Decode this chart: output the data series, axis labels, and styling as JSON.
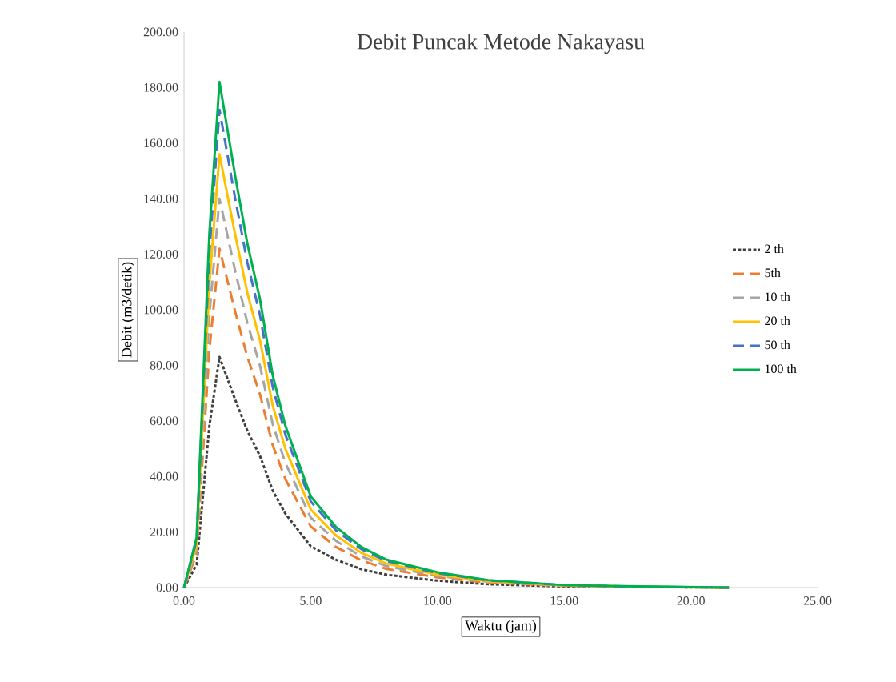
{
  "chart_data": {
    "type": "line",
    "title": "Debit Puncak Metode Nakayasu",
    "xlabel": "Waktu (jam)",
    "ylabel": "Debit (m3/detik)",
    "x": [
      0,
      0.5,
      1.0,
      1.4,
      2,
      2.5,
      3,
      3.5,
      4,
      5,
      6,
      7,
      8,
      10,
      12,
      15,
      18,
      21.5
    ],
    "xlim": [
      0,
      25
    ],
    "ylim": [
      0,
      200
    ],
    "xticks": [
      {
        "value": 0,
        "label": "0.00"
      },
      {
        "value": 5,
        "label": "5.00"
      },
      {
        "value": 10,
        "label": "10.00"
      },
      {
        "value": 15,
        "label": "15.00"
      },
      {
        "value": 20,
        "label": "20.00"
      },
      {
        "value": 25,
        "label": "25.00"
      }
    ],
    "yticks": [
      {
        "value": 0,
        "label": "0.00"
      },
      {
        "value": 20,
        "label": "20.00"
      },
      {
        "value": 40,
        "label": "40.00"
      },
      {
        "value": 60,
        "label": "60.00"
      },
      {
        "value": 80,
        "label": "80.00"
      },
      {
        "value": 100,
        "label": "100.00"
      },
      {
        "value": 120,
        "label": "120.00"
      },
      {
        "value": 140,
        "label": "140.00"
      },
      {
        "value": 160,
        "label": "160.00"
      },
      {
        "value": 180,
        "label": "180.00"
      },
      {
        "value": 200,
        "label": "200.00"
      }
    ],
    "grid": false,
    "legend": "right",
    "marker": "none",
    "series": [
      {
        "name": "2 th",
        "color": "#404040",
        "line_style": "dotted",
        "values": [
          0,
          8.3,
          58.1,
          83,
          68.1,
          56.4,
          47.3,
          34.9,
          26.6,
          14.9,
          10.0,
          6.6,
          4.6,
          2.5,
          1.2,
          0.4,
          0.2,
          0
        ]
      },
      {
        "name": "5th",
        "color": "#ed7d31",
        "line_style": "dashed",
        "values": [
          0,
          12.2,
          85.4,
          122,
          100,
          83,
          69.5,
          51.2,
          39,
          22,
          14.6,
          9.8,
          6.7,
          3.7,
          1.8,
          0.6,
          0.2,
          0
        ]
      },
      {
        "name": "10 th",
        "color": "#a5a5a5",
        "line_style": "dashed",
        "values": [
          0,
          14,
          98,
          140,
          114.8,
          95.2,
          79.8,
          58.8,
          44.8,
          25.2,
          16.8,
          11.2,
          7.7,
          4.2,
          2.1,
          0.7,
          0.3,
          0
        ]
      },
      {
        "name": "20 th",
        "color": "#ffc000",
        "line_style": "solid",
        "values": [
          0,
          15.6,
          109.2,
          156,
          127.9,
          106.1,
          88.9,
          65.5,
          49.9,
          28.1,
          18.7,
          12.5,
          8.6,
          4.7,
          2.3,
          0.8,
          0.3,
          0
        ]
      },
      {
        "name": "50 th",
        "color": "#4472c4",
        "line_style": "dashed",
        "values": [
          0,
          17.2,
          120.4,
          172,
          141,
          117,
          98,
          72.2,
          55,
          31,
          20.6,
          13.8,
          9.5,
          5.2,
          2.6,
          0.9,
          0.3,
          0
        ]
      },
      {
        "name": "100 th",
        "color": "#00b050",
        "line_style": "solid",
        "values": [
          0,
          18.2,
          127.4,
          182,
          149.2,
          123.8,
          103.7,
          76.4,
          58.2,
          32.8,
          21.8,
          14.6,
          10,
          5.5,
          2.7,
          0.9,
          0.4,
          0
        ]
      }
    ]
  }
}
